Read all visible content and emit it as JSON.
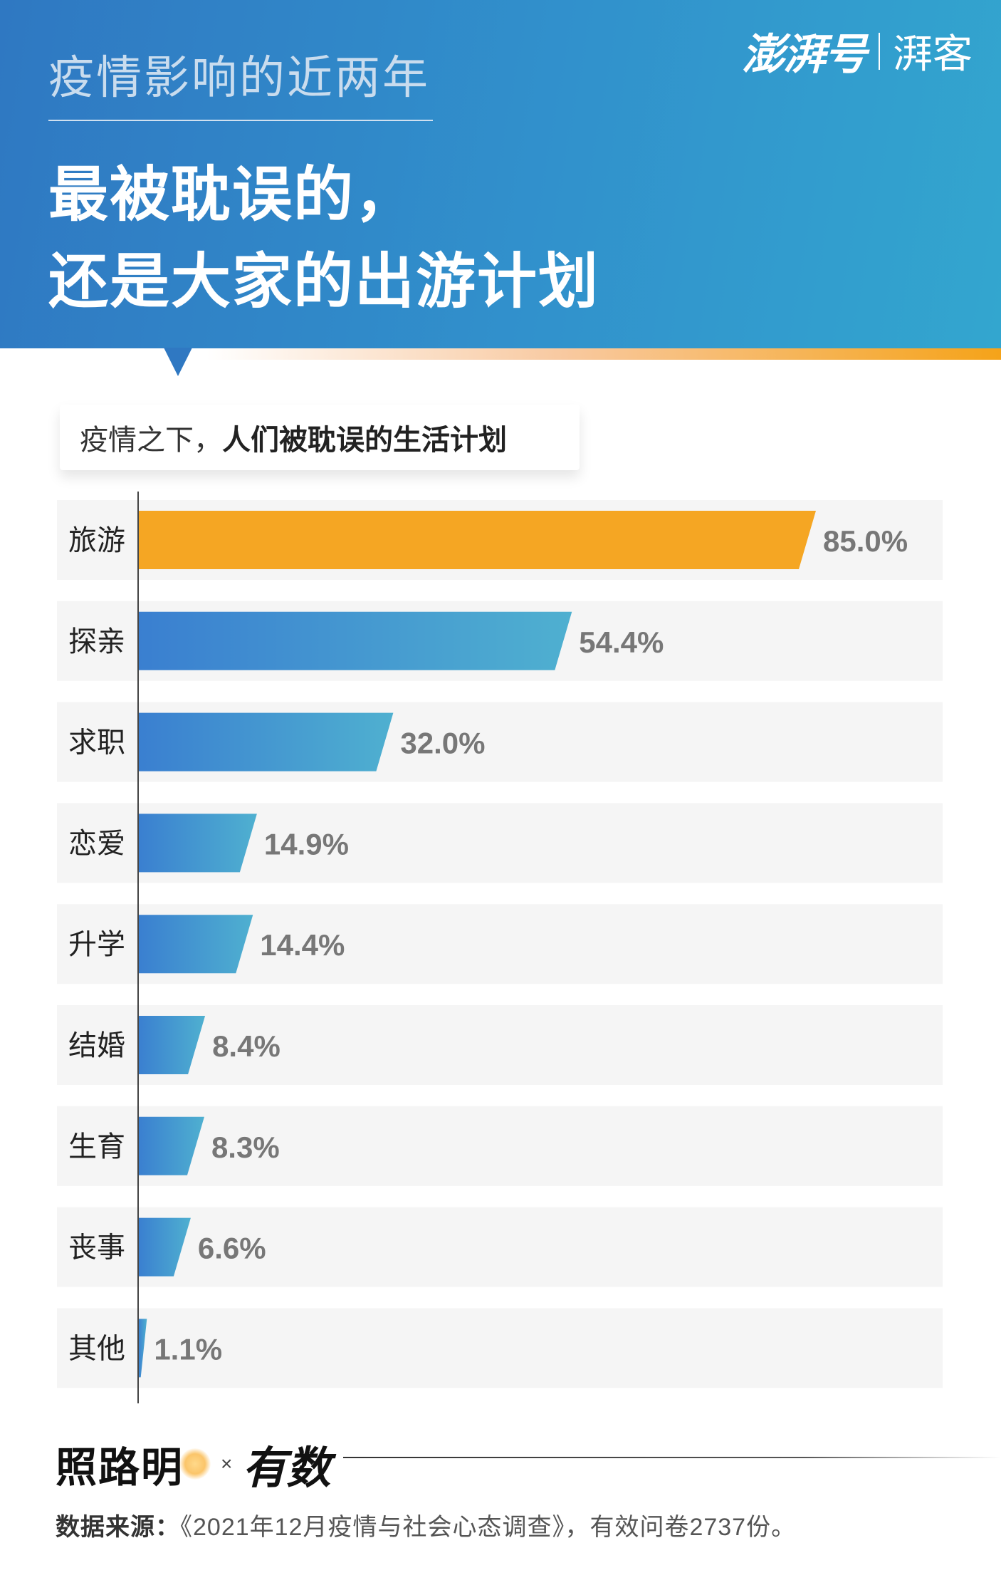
{
  "header": {
    "kicker": "疫情影响的近两年",
    "headline_line1": "最被耽误的，",
    "headline_line2": "还是大家的出游计划",
    "logo_main": "澎湃号",
    "logo_sub": "湃客"
  },
  "subtitle": {
    "prefix": "疫情之下，",
    "bold": "人们被耽误的生活计划"
  },
  "colors": {
    "highlight_bar": "#f5a623",
    "bar_gradient_start": "#3a7fd0",
    "bar_gradient_end": "#4fb0d0",
    "header_blue": "#2f78c2",
    "row_bg": "#f5f5f5"
  },
  "chart_data": {
    "type": "bar",
    "orientation": "horizontal",
    "categories": [
      "旅游",
      "探亲",
      "求职",
      "恋爱",
      "升学",
      "结婚",
      "生育",
      "丧事",
      "其他"
    ],
    "values": [
      85.0,
      54.4,
      32.0,
      14.9,
      14.4,
      8.4,
      8.3,
      6.6,
      1.1
    ],
    "value_labels": [
      "85.0%",
      "54.4%",
      "32.0%",
      "14.9%",
      "14.4%",
      "8.4%",
      "8.3%",
      "6.6%",
      "1.1%"
    ],
    "highlight_index": 0,
    "unit": "%",
    "xlim": [
      0,
      100
    ],
    "grid": false,
    "legend": "none"
  },
  "footer": {
    "brand1": "照路明",
    "times": "×",
    "brand2": "有数",
    "source_label": "数据来源：",
    "source_text": "《2021年12月疫情与社会心态调查》，有效问卷2737份。"
  }
}
